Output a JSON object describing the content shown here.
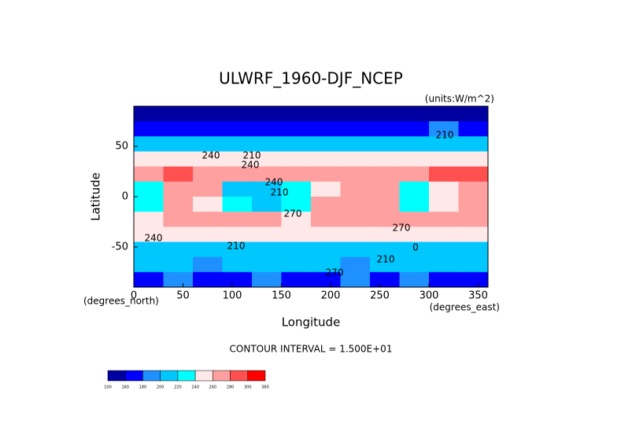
{
  "chart_data": {
    "type": "contour",
    "title": "ULWRF_1960-DJF_NCEP",
    "units": "(units:W/m^2)",
    "xlabel": "Longitude",
    "ylabel": "Latitude",
    "x_unit": "(degrees_east)",
    "y_unit": "(degrees_north)",
    "footnote": "CONTOUR INTERVAL = 1.500E+01",
    "xlim": [
      0,
      360
    ],
    "xticks": [
      0,
      50,
      100,
      150,
      200,
      250,
      300,
      350
    ],
    "ylim": [
      -90,
      90
    ],
    "yticks": [
      -50,
      0,
      50
    ],
    "lon": [
      15,
      45,
      75,
      105,
      135,
      165,
      195,
      225,
      255,
      285,
      315,
      345
    ],
    "lat": [
      82.5,
      67.5,
      52.5,
      37.5,
      22.5,
      7.5,
      -7.5,
      -22.5,
      -37.5,
      -52.5,
      -67.5,
      -82.5
    ],
    "z": [
      [
        150,
        150,
        140,
        150,
        150,
        150,
        150,
        150,
        150,
        150,
        150,
        150
      ],
      [
        170,
        170,
        165,
        170,
        175,
        175,
        170,
        170,
        170,
        175,
        180,
        170
      ],
      [
        210,
        205,
        200,
        200,
        210,
        215,
        210,
        205,
        200,
        210,
        215,
        210
      ],
      [
        245,
        240,
        250,
        240,
        245,
        250,
        245,
        245,
        240,
        245,
        245,
        250
      ],
      [
        270,
        280,
        275,
        270,
        270,
        265,
        275,
        270,
        275,
        275,
        280,
        280
      ],
      [
        220,
        260,
        270,
        210,
        200,
        230,
        250,
        260,
        260,
        220,
        250,
        260
      ],
      [
        220,
        260,
        250,
        220,
        210,
        230,
        260,
        270,
        270,
        220,
        250,
        270
      ],
      [
        250,
        270,
        270,
        260,
        270,
        250,
        260,
        270,
        270,
        260,
        270,
        270
      ],
      [
        240,
        245,
        240,
        245,
        240,
        245,
        240,
        240,
        245,
        240,
        245,
        240
      ],
      [
        210,
        210,
        205,
        210,
        210,
        205,
        210,
        210,
        205,
        210,
        210,
        210
      ],
      [
        200,
        200,
        195,
        200,
        200,
        205,
        200,
        195,
        200,
        200,
        200,
        200
      ],
      [
        175,
        180,
        170,
        175,
        180,
        175,
        170,
        180,
        175,
        180,
        175,
        170
      ]
    ],
    "levels": [
      100,
      160,
      180,
      200,
      220,
      240,
      260,
      280,
      300,
      360
    ],
    "colors": [
      "#0000a0",
      "#0000ff",
      "#1e90ff",
      "#00c8ff",
      "#00ffff",
      "#ffe8e8",
      "#ffa0a0",
      "#ff5050",
      "#ff0000"
    ],
    "contour_labels": [
      "210",
      "240",
      "240",
      "210",
      "210",
      "240",
      "270",
      "210",
      "270",
      "240",
      "0",
      "210",
      "270"
    ]
  }
}
